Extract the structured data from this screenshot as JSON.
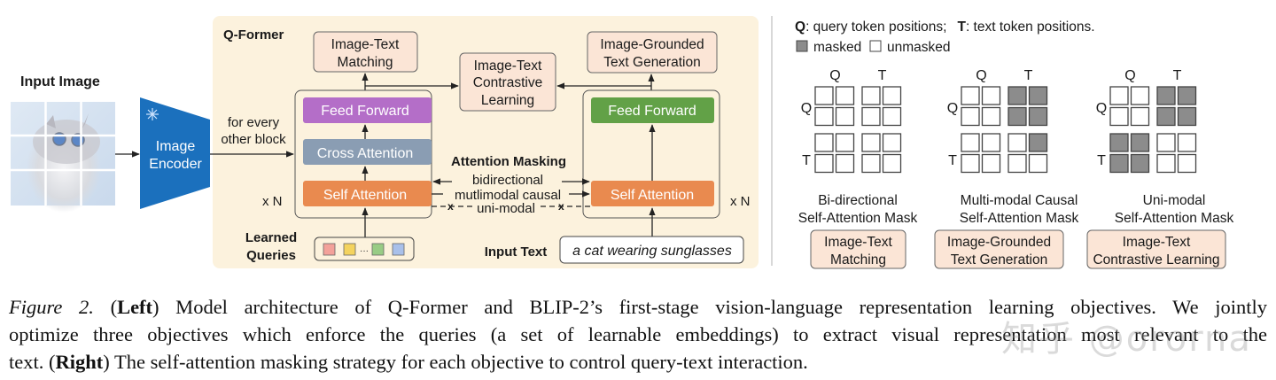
{
  "left": {
    "input_image_label": "Input Image",
    "encoder_label_1": "Image",
    "encoder_label_2": "Encoder",
    "encoder_frozen_icon": "snowflake-icon",
    "cross_note_1": "for every",
    "cross_note_2": "other block",
    "qformer_label": "Q-Former",
    "itm_1": "Image-Text",
    "itm_2": "Matching",
    "itc_1": "Image-Text",
    "itc_2": "Contrastive",
    "itc_3": "Learning",
    "itg_1": "Image-Grounded",
    "itg_2": "Text Generation",
    "feed_forward": "Feed Forward",
    "cross_attention": "Cross Attention",
    "self_attention": "Self Attention",
    "repeat_label": "x N",
    "masking_title": "Attention Masking",
    "mask_bidirectional": "bidirectional",
    "mask_causal": "mutlimodal causal",
    "mask_unimodal": "uni-modal",
    "blocked_mark": "x",
    "learned_queries_1": "Learned",
    "learned_queries_2": "Queries",
    "query_ellipsis": "···",
    "input_text_label": "Input Text",
    "input_text_value": "a cat wearing sunglasses",
    "colors": {
      "qformer_bg": "#fcf2dd",
      "encoder": "#1b70bd",
      "feed_forward_query": "#b46ec8",
      "cross_attention": "#8a9db3",
      "self_attention": "#e98a4f",
      "feed_forward_text": "#62a147",
      "objective_box": "#fbe5d6",
      "query_tokens": [
        "#f3a19a",
        "#f4d35e",
        "#98cc85",
        "#a9c0ea"
      ]
    }
  },
  "right": {
    "legend_q_key": "Q",
    "legend_q_text": ": query token positions;",
    "legend_t_key": "T",
    "legend_t_text": ": text token positions.",
    "legend_masked": "masked",
    "legend_unmasked": "unmasked",
    "masked_color": "#8c8c8c",
    "axis_q": "Q",
    "axis_t": "T",
    "masks": [
      {
        "title_1": "Bi-directional",
        "title_2": "Self-Attention Mask",
        "objective_1": "Image-Text",
        "objective_2": "Matching",
        "grid": [
          [
            0,
            0,
            0,
            0
          ],
          [
            0,
            0,
            0,
            0
          ],
          [
            0,
            0,
            0,
            0
          ],
          [
            0,
            0,
            0,
            0
          ]
        ]
      },
      {
        "title_1": "Multi-modal Causal",
        "title_2": "Self-Attention Mask",
        "objective_1": "Image-Grounded",
        "objective_2": "Text Generation",
        "grid": [
          [
            0,
            0,
            1,
            1
          ],
          [
            0,
            0,
            1,
            1
          ],
          [
            0,
            0,
            0,
            1
          ],
          [
            0,
            0,
            0,
            0
          ]
        ]
      },
      {
        "title_1": "Uni-modal",
        "title_2": "Self-Attention Mask",
        "objective_1": "Image-Text",
        "objective_2": "Contrastive Learning",
        "grid": [
          [
            0,
            0,
            1,
            1
          ],
          [
            0,
            0,
            1,
            1
          ],
          [
            1,
            1,
            0,
            0
          ],
          [
            1,
            1,
            0,
            0
          ]
        ]
      }
    ]
  },
  "caption": {
    "fig_label": "Figure 2.",
    "l1_a": " (",
    "left_bold": "Left",
    "l1_b": ") Model architecture of Q-Former and BLIP-2’s first-stage vision-language representation learning objectives. We jointly",
    "l2": "optimize three objectives which enforce the queries (a set of learnable embeddings) to extract visual representation most relevant to the",
    "l3_a": "text. (",
    "right_bold": "Right",
    "l3_b": ") The self-attention masking strategy for each objective to control query-text interaction."
  },
  "watermark": "知乎 @ororna"
}
